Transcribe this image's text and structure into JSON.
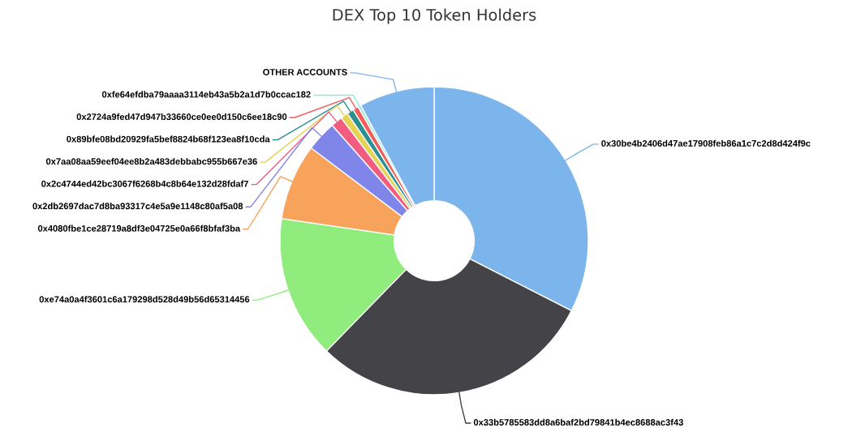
{
  "chart_data": {
    "type": "donut",
    "title": "DEX Top 10 Token Holders",
    "categories": [
      "0x30be4b2406d47ae17908feb86a1c7c2d8d424f9c",
      "0x33b5785583dd8a6baf2bd79841b4ec8688ac3f43",
      "0xe74a0a4f3601c6a179298d528d49b56d65314456",
      "0x4080fbe1ce28719a8df3e04725e0a66f8bfaf3ba",
      "0x2db2697dac7d8ba93317c4e5a9e1148c80af5a08",
      "0x2c4744ed42bc3067f6268b4c8b64e132d28fdaf7",
      "0x7aa08aa59eef04ee8b2a483debbabc955b667e36",
      "0x89bfe08bd20929fa5bef8824b68f123ea8f10cda",
      "0x2724a9fed47d947b33660ce0ee0d150c6ee18c90",
      "0xfe64efdba79aaaa3114eb43a5b2a1d7b0ccac182",
      "OTHER ACCOUNTS"
    ],
    "values": [
      32.5,
      29.8,
      15.0,
      8.0,
      3.2,
      1.2,
      0.8,
      0.7,
      0.6,
      0.3,
      7.9
    ],
    "colors": [
      "#7cb5ec",
      "#434348",
      "#90ed7d",
      "#f7a35c",
      "#8085e9",
      "#f15c80",
      "#e4d354",
      "#2b908f",
      "#f45b5b",
      "#91e8e1",
      "#7cb5ec"
    ]
  }
}
